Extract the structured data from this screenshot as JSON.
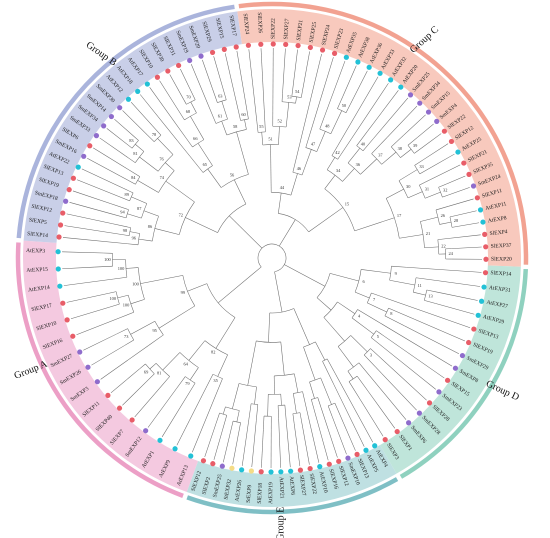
{
  "colors": {
    "sector_backgrounds": {
      "Group A": "#f4c9e0",
      "Group B": "#c9cfe8",
      "Group C": "#f8c9bd",
      "Group D": "#bfe5da",
      "Group E": "#bfe0e2"
    },
    "outer_arcs": {
      "Group A": "#ec9fc6",
      "Group B": "#aab4dc",
      "Group C": "#f2a291",
      "Group D": "#8fd1bf",
      "Group E": "#7fbfc5"
    },
    "species_markers": {
      "Sl": "#e85d68",
      "At": "#22c1d6",
      "Sm": "#8f6ccc",
      "other": "#f5dc86"
    },
    "branch_line": "#6b6b6b"
  },
  "groups": [
    {
      "name": "Group A",
      "label": "Group A"
    },
    {
      "name": "Group B",
      "label": "Group B"
    },
    {
      "name": "Group C",
      "label": "Group C"
    },
    {
      "name": "Group D",
      "label": "Group D"
    },
    {
      "name": "Group E",
      "label": "Group E"
    }
  ],
  "leaves": [
    {
      "label": "AtEXP13",
      "group": "Group A"
    },
    {
      "label": "AtEXP9",
      "group": "Group A"
    },
    {
      "label": "AtEXP1",
      "group": "Group A"
    },
    {
      "label": "SmEXP12",
      "group": "Group A"
    },
    {
      "label": "SlEXP7",
      "group": "Group A"
    },
    {
      "label": "SlEXP40",
      "group": "Group A"
    },
    {
      "label": "SlEXP11",
      "group": "Group A"
    },
    {
      "label": "SmEXP3",
      "group": "Group A"
    },
    {
      "label": "SmEXP26",
      "group": "Group A"
    },
    {
      "label": "SmEXP27",
      "group": "Group A"
    },
    {
      "label": "SlEXP16",
      "group": "Group A"
    },
    {
      "label": "SlEXP10",
      "group": "Group A"
    },
    {
      "label": "SlEXP17",
      "group": "Group A"
    },
    {
      "label": "AtEXP14",
      "group": "Group A"
    },
    {
      "label": "AtEXP15",
      "group": "Group A"
    },
    {
      "label": "AtEXP3",
      "group": "Group A"
    },
    {
      "label": "SlEXP14",
      "group": "Group B"
    },
    {
      "label": "SlEXP5",
      "group": "Group B"
    },
    {
      "label": "SlEXP12",
      "group": "Group B"
    },
    {
      "label": "SmEXP18",
      "group": "Group B"
    },
    {
      "label": "SlEXP19",
      "group": "Group B"
    },
    {
      "label": "SlEXP13",
      "group": "Group B"
    },
    {
      "label": "AtEXP22",
      "group": "Group B"
    },
    {
      "label": "SmEXP16",
      "group": "Group B"
    },
    {
      "label": "SlEXP6",
      "group": "Group B"
    },
    {
      "label": "SmEXP33",
      "group": "Group B"
    },
    {
      "label": "SmEXP34",
      "group": "Group B"
    },
    {
      "label": "SmEXP14",
      "group": "Group B"
    },
    {
      "label": "SmEXP30",
      "group": "Group B"
    },
    {
      "label": "AtEXP12",
      "group": "Group B"
    },
    {
      "label": "AtEXP18",
      "group": "Group B"
    },
    {
      "label": "AtEXP17",
      "group": "Group B"
    },
    {
      "label": "SlEXP10",
      "group": "Group B"
    },
    {
      "label": "SlEXP30",
      "group": "Group B"
    },
    {
      "label": "SlEXP31",
      "group": "Group B"
    },
    {
      "label": "SmEXP19",
      "group": "Group B"
    },
    {
      "label": "SmEXP20",
      "group": "Group B"
    },
    {
      "label": "SlEXP29",
      "group": "Group B"
    },
    {
      "label": "SlEXP15",
      "group": "Group B"
    },
    {
      "label": "SlEXP17",
      "group": "Group B"
    },
    {
      "label": "SlEXP24",
      "group": "Group C"
    },
    {
      "label": "SlEXP26",
      "group": "Group C"
    },
    {
      "label": "SlEXP22",
      "group": "Group C"
    },
    {
      "label": "SlEXP27",
      "group": "Group C"
    },
    {
      "label": "SlEXP21",
      "group": "Group C"
    },
    {
      "label": "SlEXP25",
      "group": "Group C"
    },
    {
      "label": "SlEXP24",
      "group": "Group C"
    },
    {
      "label": "SlEXP23",
      "group": "Group C"
    },
    {
      "label": "AtEXP35",
      "group": "Group C"
    },
    {
      "label": "AtEXP38",
      "group": "Group C"
    },
    {
      "label": "AtEXP36",
      "group": "Group C"
    },
    {
      "label": "AtEXP33",
      "group": "Group C"
    },
    {
      "label": "AtEXP32",
      "group": "Group C"
    },
    {
      "label": "AtEXP20",
      "group": "Group C"
    },
    {
      "label": "SmEXP25",
      "group": "Group C"
    },
    {
      "label": "SmEXP34",
      "group": "Group C"
    },
    {
      "label": "SmEXP15",
      "group": "Group C"
    },
    {
      "label": "SmEXP4",
      "group": "Group C"
    },
    {
      "label": "SlEXP22",
      "group": "Group C"
    },
    {
      "label": "SlEXP12",
      "group": "Group C"
    },
    {
      "label": "AtEXP25",
      "group": "Group C"
    },
    {
      "label": "SlEXP21",
      "group": "Group C"
    },
    {
      "label": "SlEXP35",
      "group": "Group C"
    },
    {
      "label": "SmEXP24",
      "group": "Group C"
    },
    {
      "label": "SlEXP11",
      "group": "Group C"
    },
    {
      "label": "AtEXP11",
      "group": "Group C"
    },
    {
      "label": "AtEXP8",
      "group": "Group C"
    },
    {
      "label": "SlEXP4",
      "group": "Group C"
    },
    {
      "label": "SlEXP37",
      "group": "Group C"
    },
    {
      "label": "SlEXP20",
      "group": "Group C"
    },
    {
      "label": "SlEXP14",
      "group": "Group D"
    },
    {
      "label": "AtEXP31",
      "group": "Group D"
    },
    {
      "label": "AtEXP27",
      "group": "Group D"
    },
    {
      "label": "AtEXP29",
      "group": "Group D"
    },
    {
      "label": "SlEXP13",
      "group": "Group D"
    },
    {
      "label": "SlEXP19",
      "group": "Group D"
    },
    {
      "label": "SmEXP29",
      "group": "Group D"
    },
    {
      "label": "SmEXP8",
      "group": "Group D"
    },
    {
      "label": "SlEXP15",
      "group": "Group D"
    },
    {
      "label": "SmEXP23",
      "group": "Group D"
    },
    {
      "label": "SlEXP28",
      "group": "Group D"
    },
    {
      "label": "SmEXP28",
      "group": "Group D"
    },
    {
      "label": "SmEXP6",
      "group": "Group D"
    },
    {
      "label": "SlEXP1",
      "group": "Group D"
    },
    {
      "label": "SlEXP3",
      "group": "Group D"
    },
    {
      "label": "AtEXP4",
      "group": "Group E"
    },
    {
      "label": "AtEXP5",
      "group": "Group E"
    },
    {
      "label": "SlEXP13",
      "group": "Group E"
    },
    {
      "label": "SmEXP10",
      "group": "Group E"
    },
    {
      "label": "SlEXP12",
      "group": "Group E"
    },
    {
      "label": "SlEXP16",
      "group": "Group E"
    },
    {
      "label": "AtEXP10",
      "group": "Group E"
    },
    {
      "label": "SlEXP22",
      "group": "Group E"
    },
    {
      "label": "SlEXP27",
      "group": "Group E"
    },
    {
      "label": "AtEXP6",
      "group": "Group E"
    },
    {
      "label": "AtEXP21",
      "group": "Group E"
    },
    {
      "label": "AtEXP19",
      "group": "Group E"
    },
    {
      "label": "SlEXP18",
      "group": "Group E"
    },
    {
      "label": "StEXP9",
      "group": "Group E"
    },
    {
      "label": "AtEXP26",
      "group": "Group E"
    },
    {
      "label": "StEXP32",
      "group": "Group E"
    },
    {
      "label": "SmEXP25",
      "group": "Group E"
    },
    {
      "label": "SlEXP2",
      "group": "Group E"
    },
    {
      "label": "SlEXP12",
      "group": "Group E"
    }
  ],
  "bootstrap_values": [
    "35",
    "79",
    "69",
    "81",
    "64",
    "82",
    "73",
    "95",
    "100",
    "100",
    "100",
    "100",
    "100",
    "99",
    "98",
    "96",
    "94",
    "89",
    "87",
    "86",
    "84",
    "83",
    "81",
    "78",
    "76",
    "74",
    "72",
    "70",
    "68",
    "66",
    "65",
    "63",
    "61",
    "60",
    "58",
    "56",
    "55",
    "54",
    "53",
    "52",
    "51",
    "50",
    "48",
    "47",
    "46",
    "44",
    "42",
    "40",
    "39",
    "38",
    "37",
    "36",
    "34",
    "33",
    "32",
    "31",
    "30",
    "28",
    "26",
    "24",
    "22",
    "21",
    "17",
    "15",
    "13",
    "11",
    "9",
    "8",
    "7",
    "6",
    "5",
    "4",
    "3"
  ]
}
